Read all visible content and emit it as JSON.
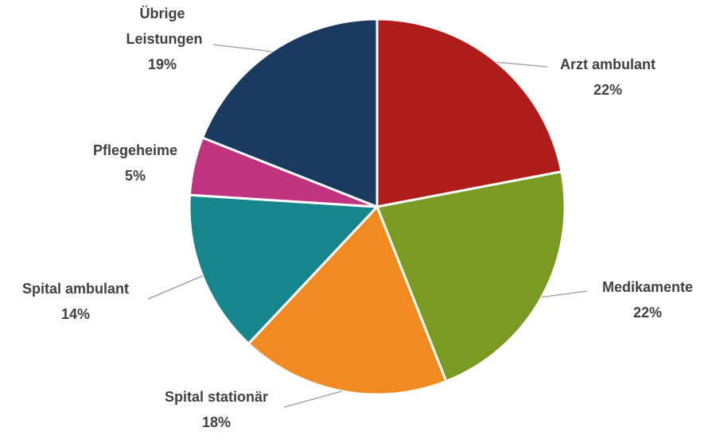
{
  "chart_data": {
    "type": "pie",
    "categories": [
      "Arzt ambulant",
      "Medikamente",
      "Spital stationär",
      "Spital ambulant",
      "Pflegeheime",
      "Übrige Leistungen"
    ],
    "values": [
      22,
      22,
      18,
      14,
      5,
      19
    ],
    "value_labels": [
      "22%",
      "22%",
      "18%",
      "14%",
      "5%",
      "19%"
    ],
    "colors": [
      "#b01c1a",
      "#7a9a22",
      "#f28a22",
      "#16868c",
      "#c0347f",
      "#1b3a5f"
    ]
  }
}
